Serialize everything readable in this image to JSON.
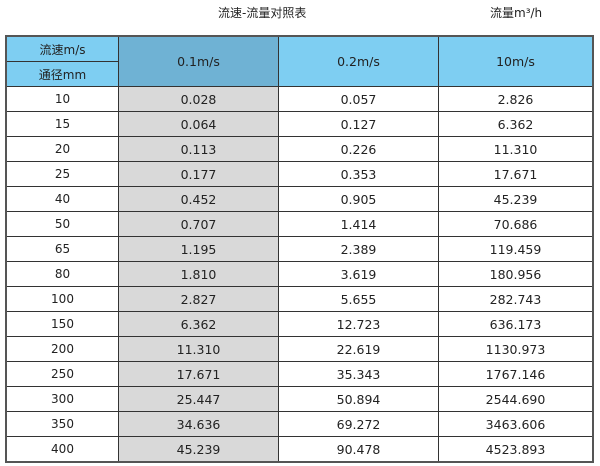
{
  "title": "流速-流量对照表",
  "unit_label": "流量m³/h",
  "colors": {
    "header": "#7ecef2",
    "header_highlight": "#6fb2d4",
    "highlight_column": "#d9d9d9"
  },
  "table": {
    "corner_top": "流速m/s",
    "corner_bottom": "通径mm",
    "columns": [
      "0.1m/s",
      "0.2m/s",
      "10m/s"
    ],
    "rows": [
      [
        "10",
        "0.028",
        "0.057",
        "2.826"
      ],
      [
        "15",
        "0.064",
        "0.127",
        "6.362"
      ],
      [
        "20",
        "0.113",
        "0.226",
        "11.310"
      ],
      [
        "25",
        "0.177",
        "0.353",
        "17.671"
      ],
      [
        "40",
        "0.452",
        "0.905",
        "45.239"
      ],
      [
        "50",
        "0.707",
        "1.414",
        "70.686"
      ],
      [
        "65",
        "1.195",
        "2.389",
        "119.459"
      ],
      [
        "80",
        "1.810",
        "3.619",
        "180.956"
      ],
      [
        "100",
        "2.827",
        "5.655",
        "282.743"
      ],
      [
        "150",
        "6.362",
        "12.723",
        "636.173"
      ],
      [
        "200",
        "11.310",
        "22.619",
        "1130.973"
      ],
      [
        "250",
        "17.671",
        "35.343",
        "1767.146"
      ],
      [
        "300",
        "25.447",
        "50.894",
        "2544.690"
      ],
      [
        "350",
        "34.636",
        "69.272",
        "3463.606"
      ],
      [
        "400",
        "45.239",
        "90.478",
        "4523.893"
      ]
    ]
  }
}
